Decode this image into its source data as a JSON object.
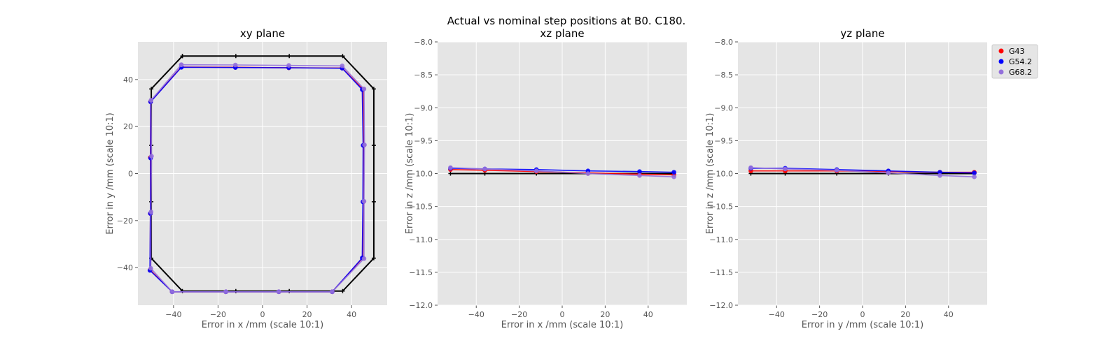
{
  "figure": {
    "title_line1": "Actual vs nominal step positions at B0. C180.",
    "title_line2": "xz plane"
  },
  "legend": [
    {
      "label": "G43",
      "color": "#ff0000"
    },
    {
      "label": "G54.2",
      "color": "#0000ff"
    },
    {
      "label": "G68.2",
      "color": "#9370db"
    }
  ],
  "colors": {
    "nominal": "#000000",
    "G43": "#ff0000",
    "G54.2": "#0000ff",
    "G68.2": "#9370db",
    "axes_bg": "#e5e5e5",
    "grid": "#ffffff"
  },
  "chart_data": [
    {
      "type": "line",
      "title": "xy plane",
      "xlabel": "Error in x /mm (scale 10:1)",
      "ylabel": "Error in y /mm (scale 10:1)",
      "xlim": [
        -56,
        56
      ],
      "ylim": [
        -56,
        56
      ],
      "xticks": [
        -40,
        -20,
        0,
        20,
        40
      ],
      "yticks": [
        -40,
        -20,
        0,
        20,
        40
      ],
      "grid": true,
      "nominal": {
        "x": [
          -36,
          -12,
          12,
          36,
          50,
          50,
          50,
          50,
          36,
          12,
          -12,
          -36,
          -50,
          -50,
          -50,
          -50,
          -36
        ],
        "y": [
          50,
          50,
          50,
          50,
          36,
          12,
          -12,
          -36,
          -50,
          -50,
          -50,
          -50,
          -36,
          -12,
          12,
          36,
          50
        ]
      },
      "series": [
        {
          "name": "G43",
          "x": [
            -36.5,
            -12.2,
            11.8,
            35.8,
            45.2,
            45.4,
            45.3,
            45.0,
            31.3,
            7.3,
            -16.5,
            -40.6,
            -50.5,
            -50.4,
            -50.4,
            -50.3,
            -36.5
          ],
          "y": [
            45.3,
            45.2,
            45.0,
            44.9,
            35.8,
            12.0,
            -12.0,
            -35.9,
            -50.3,
            -50.3,
            -50.3,
            -50.3,
            -41.0,
            -17.0,
            6.8,
            30.6,
            45.3
          ]
        },
        {
          "name": "G54.2",
          "x": [
            -36.5,
            -12.2,
            11.8,
            35.8,
            44.8,
            45.2,
            45.1,
            44.8,
            31.3,
            7.3,
            -16.5,
            -40.6,
            -50.6,
            -50.4,
            -50.3,
            -50.3,
            -36.5
          ],
          "y": [
            45.2,
            45.1,
            45.0,
            44.8,
            35.7,
            12.0,
            -12.0,
            -35.9,
            -50.3,
            -50.3,
            -50.3,
            -50.3,
            -41.2,
            -17.0,
            6.6,
            30.5,
            45.2
          ]
        },
        {
          "name": "G68.2",
          "x": [
            -36.5,
            -12.2,
            11.8,
            35.8,
            45.6,
            45.8,
            45.6,
            45.6,
            31.3,
            7.3,
            -16.5,
            -40.6,
            -50.2,
            -50.1,
            -49.9,
            -50.1,
            -36.5
          ],
          "y": [
            46.3,
            46.2,
            46.0,
            45.8,
            36.0,
            12.2,
            -11.8,
            -36.2,
            -50.3,
            -50.3,
            -50.3,
            -50.3,
            -40.3,
            -16.3,
            7.4,
            31.2,
            46.3
          ]
        }
      ]
    },
    {
      "type": "line",
      "title": "xz plane",
      "xlabel": "Error in x /mm (scale 10:1)",
      "ylabel": "Error in z /mm (scale 10:1)",
      "xlim": [
        -58,
        58
      ],
      "ylim": [
        -12.0,
        -8.0
      ],
      "xticks": [
        -40,
        -20,
        0,
        20,
        40
      ],
      "yticks": [
        -8.0,
        -8.5,
        -9.0,
        -9.5,
        -10.0,
        -10.5,
        -11.0,
        -11.5,
        -12.0
      ],
      "ytick_labels": [
        "−8.0",
        "−8.5",
        "−9.0",
        "−9.5",
        "−10.0",
        "−10.5",
        "−11.0",
        "−11.5",
        "−12.0"
      ],
      "grid": true,
      "nominal": {
        "x": [
          -52,
          -36,
          -12,
          12,
          36,
          52
        ],
        "y": [
          -10.0,
          -10.0,
          -10.0,
          -10.0,
          -10.0,
          -10.0
        ]
      },
      "series": [
        {
          "name": "G43",
          "x": [
            -52,
            -36,
            -12,
            12,
            36,
            52
          ],
          "y": [
            -9.94,
            -9.95,
            -9.97,
            -9.99,
            -10.01,
            -10.02
          ]
        },
        {
          "name": "G54.2",
          "x": [
            -52,
            -36,
            -12,
            12,
            36,
            52
          ],
          "y": [
            -9.92,
            -9.93,
            -9.94,
            -9.96,
            -9.97,
            -9.98
          ]
        },
        {
          "name": "G68.2",
          "x": [
            -52,
            -36,
            -12,
            12,
            36,
            52
          ],
          "y": [
            -9.91,
            -9.93,
            -9.96,
            -10.0,
            -10.03,
            -10.05
          ]
        }
      ]
    },
    {
      "type": "line",
      "title": "yz plane",
      "xlabel": "Error in y /mm (scale 10:1)",
      "ylabel": "Error in z /mm (scale 10:1)",
      "xlim": [
        -58,
        58
      ],
      "ylim": [
        -12.0,
        -8.0
      ],
      "xticks": [
        -40,
        -20,
        0,
        20,
        40
      ],
      "yticks": [
        -8.0,
        -8.5,
        -9.0,
        -9.5,
        -10.0,
        -10.5,
        -11.0,
        -11.5,
        -12.0
      ],
      "ytick_labels": [
        "−8.0",
        "−8.5",
        "−9.0",
        "−9.5",
        "−10.0",
        "−10.5",
        "−11.0",
        "−11.5",
        "−12.0"
      ],
      "grid": true,
      "nominal": {
        "x": [
          -52,
          -36,
          -12,
          12,
          36,
          52
        ],
        "y": [
          -10.0,
          -10.0,
          -10.0,
          -10.0,
          -10.0,
          -10.0
        ]
      },
      "series": [
        {
          "name": "G43",
          "x": [
            -52,
            -36,
            -12,
            12,
            36,
            52
          ],
          "y": [
            -9.96,
            -9.96,
            -9.96,
            -9.97,
            -9.98,
            -9.98
          ]
        },
        {
          "name": "G54.2",
          "x": [
            -52,
            -36,
            -12,
            12,
            36,
            52
          ],
          "y": [
            -9.92,
            -9.92,
            -9.94,
            -9.96,
            -9.98,
            -9.99
          ]
        },
        {
          "name": "G68.2",
          "x": [
            -52,
            -36,
            -12,
            12,
            36,
            52
          ],
          "y": [
            -9.91,
            -9.93,
            -9.95,
            -9.99,
            -10.03,
            -10.05
          ]
        }
      ]
    }
  ]
}
